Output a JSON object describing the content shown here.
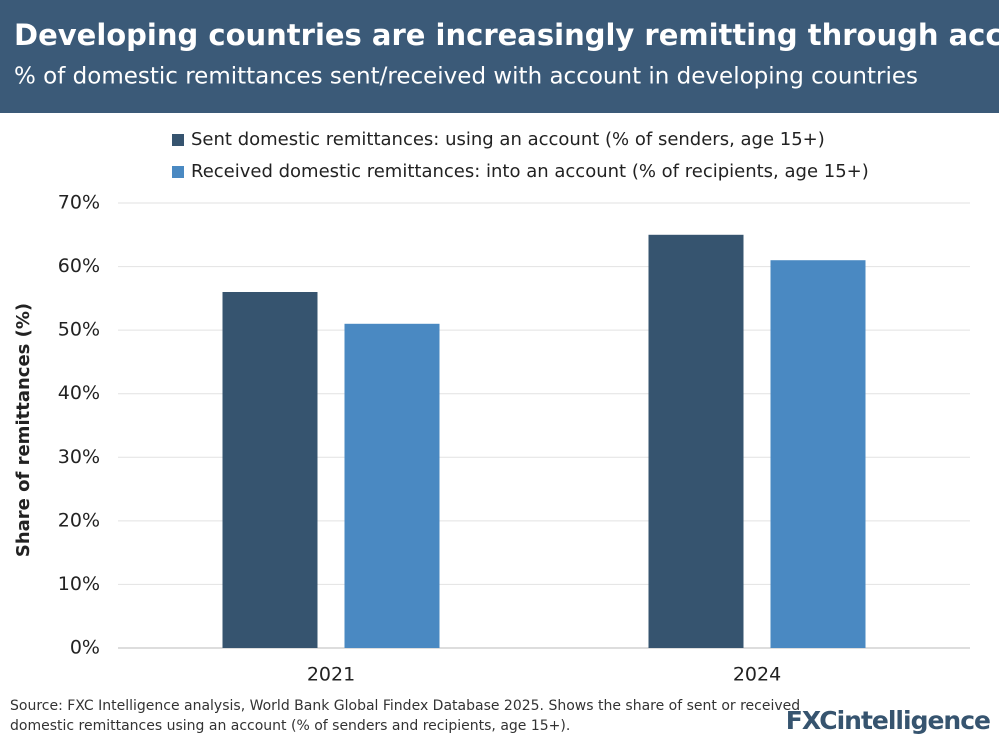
{
  "chart_data": {
    "type": "bar",
    "title": "Developing countries are increasingly remitting through accounts",
    "subtitle": "% of domestic remittances sent/received with account in developing countries",
    "y_label": "Share of remittances (%)",
    "categories": [
      "2021",
      "2024"
    ],
    "series": [
      {
        "name": "Sent domestic remittances: using an account (% of senders, age 15+)",
        "color": "#36546f",
        "values": [
          56,
          65
        ]
      },
      {
        "name": "Received domestic remittances: into an account (% of recipients, age 15+)",
        "color": "#4a89c2",
        "values": [
          51,
          61
        ]
      }
    ],
    "ylim": [
      0,
      70
    ],
    "yticks": [
      {
        "value": 0,
        "label": "0%"
      },
      {
        "value": 10,
        "label": "10%"
      },
      {
        "value": 20,
        "label": "20%"
      },
      {
        "value": 30,
        "label": "30%"
      },
      {
        "value": 40,
        "label": "40%"
      },
      {
        "value": 50,
        "label": "50%"
      },
      {
        "value": 60,
        "label": "60%"
      },
      {
        "value": 70,
        "label": "70%"
      }
    ],
    "grid": true,
    "source": [
      "Source: FXC Intelligence analysis, World Bank Global Findex Database 2025. Shows the share of sent or received",
      "domestic remittances using an account (% of senders and recipients, age 15+)."
    ],
    "logo": "FXCintelligence"
  }
}
